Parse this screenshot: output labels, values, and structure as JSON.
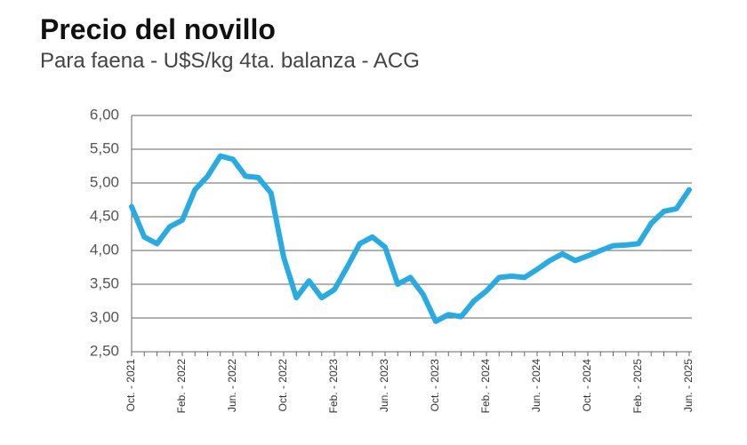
{
  "chart_data": {
    "type": "line",
    "title": "Precio del novillo",
    "subtitle": "Para faena - U$S/kg 4ta. balanza - ACG",
    "categories": [
      "Oct. - 2021",
      null,
      null,
      null,
      "Feb. - 2022",
      null,
      null,
      null,
      "Jun. - 2022",
      null,
      null,
      null,
      "Oct. - 2022",
      null,
      null,
      null,
      "Feb. - 2023",
      null,
      null,
      null,
      "Jun. - 2023",
      null,
      null,
      null,
      "Oct. - 2023",
      null,
      null,
      null,
      "Feb. - 2024",
      null,
      null,
      null,
      "Jun. - 2024",
      null,
      null,
      null,
      "Oct. - 2024",
      null,
      null,
      null,
      "Feb. - 2025",
      null,
      null,
      null,
      "Jun. - 2025"
    ],
    "values": [
      4.65,
      4.2,
      4.1,
      4.35,
      4.45,
      4.9,
      5.1,
      5.4,
      5.35,
      5.1,
      5.08,
      4.85,
      3.9,
      3.3,
      3.55,
      3.3,
      3.42,
      3.75,
      4.1,
      4.2,
      4.05,
      3.5,
      3.6,
      3.35,
      2.95,
      3.05,
      3.02,
      3.25,
      3.4,
      3.6,
      3.62,
      3.6,
      3.72,
      3.85,
      3.95,
      3.85,
      3.92,
      4.0,
      4.07,
      4.08,
      4.1,
      4.4,
      4.58,
      4.62,
      4.9
    ],
    "color": "#29abe2",
    "ylim": [
      2.5,
      6
    ],
    "yticks": [
      {
        "value": 2.5,
        "label": "2,50"
      },
      {
        "value": 3,
        "label": "3,00"
      },
      {
        "value": 3.5,
        "label": "3,50"
      },
      {
        "value": 4,
        "label": "4,00"
      },
      {
        "value": 4.5,
        "label": "4,50"
      },
      {
        "value": 5,
        "label": "5,00"
      },
      {
        "value": 5.5,
        "label": "5,50"
      },
      {
        "value": 6,
        "label": "6,00"
      }
    ],
    "grid": true
  }
}
